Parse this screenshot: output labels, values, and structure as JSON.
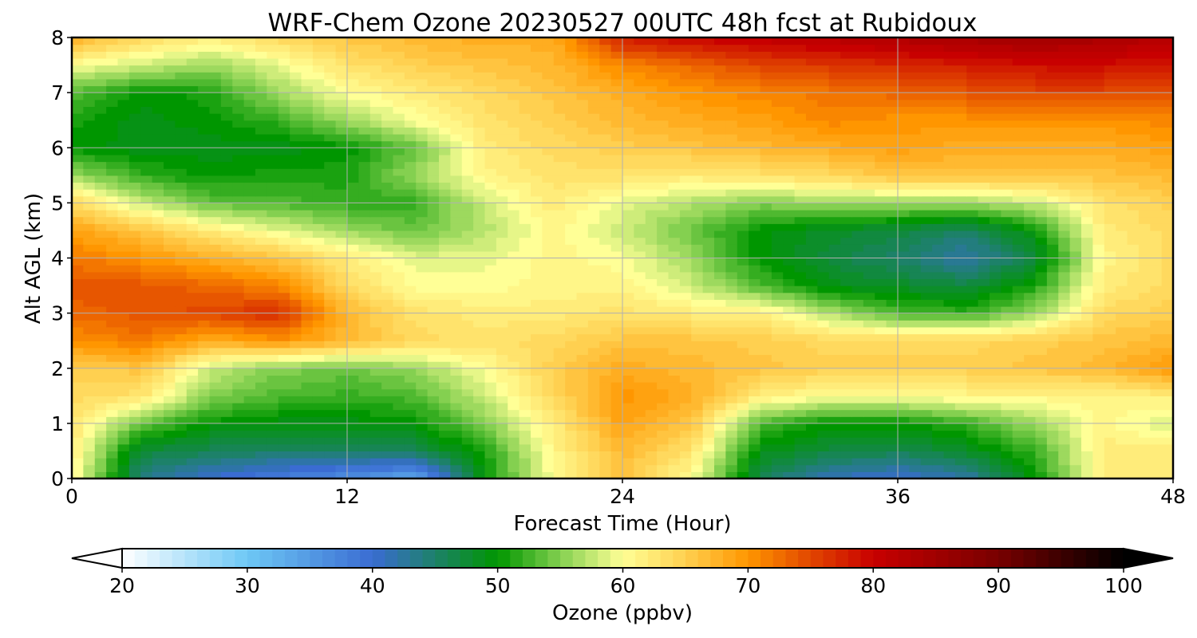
{
  "chart_data": {
    "type": "heatmap",
    "title": "WRF-Chem Ozone  20230527 00UTC 48h fcst at Rubidoux",
    "xlabel": "Forecast Time (Hour)",
    "ylabel": "Alt AGL (km)",
    "xlim": [
      0,
      48
    ],
    "ylim": [
      0,
      8
    ],
    "x_ticks": [
      0,
      12,
      24,
      36,
      48
    ],
    "y_ticks": [
      0,
      1,
      2,
      3,
      4,
      5,
      6,
      7,
      8
    ],
    "grid": true,
    "x_hours": [
      0,
      3,
      6,
      9,
      12,
      15,
      18,
      21,
      24,
      27,
      30,
      33,
      36,
      39,
      42,
      45,
      48
    ],
    "y_km": [
      0,
      0.5,
      1,
      1.5,
      2,
      2.5,
      3,
      3.5,
      4,
      4.5,
      5,
      5.5,
      6,
      6.5,
      7,
      7.5,
      8
    ],
    "values": [
      [
        61,
        44,
        40,
        38,
        36,
        33,
        50,
        60,
        66,
        60,
        46,
        41,
        40,
        42,
        50,
        62,
        62
      ],
      [
        62,
        47,
        46,
        45,
        45,
        46,
        51,
        61,
        67,
        63,
        49,
        47,
        46,
        48,
        52,
        62,
        62
      ],
      [
        63,
        54,
        50,
        49,
        49,
        50,
        55,
        62,
        69,
        66,
        53,
        50,
        50,
        52,
        56,
        61,
        58
      ],
      [
        64,
        63,
        55,
        53,
        52,
        53,
        58,
        64,
        70,
        68,
        62,
        60,
        60,
        61,
        61,
        61,
        62
      ],
      [
        65,
        66,
        58,
        55,
        54,
        56,
        60,
        65,
        68,
        67,
        66,
        65,
        65,
        65,
        66,
        67,
        70
      ],
      [
        70,
        72,
        68,
        70,
        67,
        64,
        63,
        64,
        66,
        66,
        65,
        64,
        64,
        64,
        65,
        66,
        67
      ],
      [
        73,
        74,
        75,
        77,
        67,
        63,
        62,
        62,
        63,
        62,
        62,
        57,
        53,
        52,
        56,
        64,
        65
      ],
      [
        74,
        74,
        73,
        71,
        64,
        60,
        60,
        61,
        61,
        58,
        53,
        49,
        48,
        47,
        51,
        62,
        64
      ],
      [
        72,
        70,
        68,
        66,
        62,
        59,
        59,
        61,
        60,
        56,
        50,
        47,
        45,
        42,
        47,
        61,
        64
      ],
      [
        69,
        66,
        62,
        59,
        56,
        54,
        57,
        61,
        58,
        54,
        50,
        48,
        47,
        45,
        50,
        62,
        64
      ],
      [
        64,
        58,
        54,
        53,
        52,
        52,
        58,
        62,
        59,
        57,
        55,
        56,
        56,
        56,
        58,
        63,
        65
      ],
      [
        56,
        52,
        50,
        51,
        51,
        56,
        61,
        63,
        63,
        62,
        63,
        64,
        66,
        66,
        66,
        66,
        67
      ],
      [
        50,
        49,
        49,
        49,
        50,
        54,
        62,
        64,
        65,
        66,
        67,
        68,
        69,
        68,
        68,
        68,
        69
      ],
      [
        51,
        49,
        50,
        52,
        56,
        60,
        63,
        65,
        67,
        68,
        69,
        71,
        70,
        70,
        70,
        70,
        71
      ],
      [
        53,
        50,
        51,
        56,
        60,
        62,
        64,
        66,
        68,
        70,
        71,
        72,
        73,
        74,
        75,
        75,
        75
      ],
      [
        60,
        58,
        56,
        59,
        63,
        65,
        66,
        67,
        71,
        73,
        75,
        76,
        77,
        78,
        79,
        79,
        78
      ],
      [
        68,
        64,
        62,
        64,
        66,
        67,
        68,
        68,
        78,
        80,
        81,
        82,
        83,
        84,
        85,
        84,
        82
      ]
    ],
    "colorbar": {
      "label": "Ozone  (ppbv)",
      "min": 20,
      "max": 100,
      "extend": "both",
      "ticks": [
        20,
        30,
        40,
        50,
        60,
        70,
        80,
        90,
        100
      ],
      "stops": [
        {
          "value": 20,
          "color": "#ffffff"
        },
        {
          "value": 30,
          "color": "#6ec8f5"
        },
        {
          "value": 40,
          "color": "#3a6cd2"
        },
        {
          "value": 50,
          "color": "#009600"
        },
        {
          "value": 55,
          "color": "#84d050"
        },
        {
          "value": 60,
          "color": "#ffff96"
        },
        {
          "value": 65,
          "color": "#ffd050"
        },
        {
          "value": 70,
          "color": "#ff9600"
        },
        {
          "value": 75,
          "color": "#e14600"
        },
        {
          "value": 80,
          "color": "#c80000"
        },
        {
          "value": 90,
          "color": "#780000"
        },
        {
          "value": 100,
          "color": "#000000"
        }
      ]
    }
  }
}
